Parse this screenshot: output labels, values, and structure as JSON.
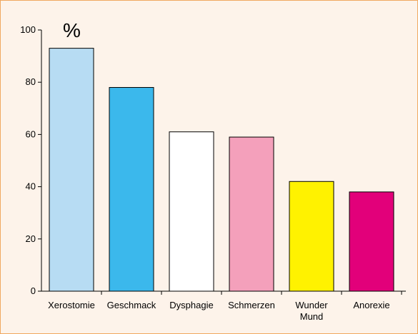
{
  "chart_data": {
    "type": "bar",
    "unit": "%",
    "categories": [
      [
        "Xerostomie"
      ],
      [
        "Geschmack"
      ],
      [
        "Dysphagie"
      ],
      [
        "Schmerzen"
      ],
      [
        "Wunder",
        "Mund"
      ],
      [
        "Anorexie"
      ]
    ],
    "values": [
      93,
      78,
      61,
      59,
      42,
      38
    ],
    "colors": [
      "#b7dcf3",
      "#3bb8ec",
      "#ffffff",
      "#f4a0bb",
      "#fff200",
      "#e2007a"
    ],
    "yticks": [
      0,
      20,
      40,
      60,
      80,
      100
    ],
    "ylim": [
      0,
      100
    ],
    "grid": false,
    "legend": "none"
  }
}
